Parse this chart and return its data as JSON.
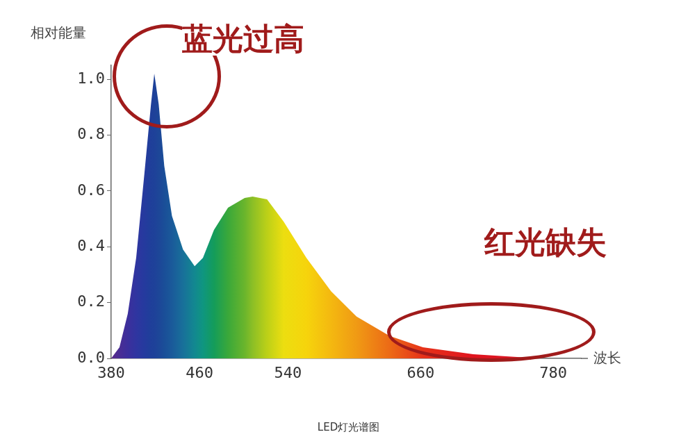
{
  "chart_data": {
    "type": "area",
    "xlabel": "波长",
    "ylabel": "相对能量",
    "x": [
      380,
      387.5,
      395,
      402.6,
      410,
      416,
      419,
      423,
      428,
      435,
      445,
      455.5,
      463,
      473,
      485.7,
      500.8,
      508,
      521,
      536,
      556.6,
      579,
      602,
      632,
      662,
      707.5,
      768
    ],
    "series": [
      {
        "values": [
          0,
          0.04,
          0.16,
          0.36,
          0.66,
          0.91,
          1.02,
          0.91,
          0.69,
          0.51,
          0.39,
          0.33,
          0.36,
          0.46,
          0.54,
          0.575,
          0.58,
          0.57,
          0.49,
          0.36,
          0.24,
          0.15,
          0.08,
          0.04,
          0.015,
          0
        ],
        "colors": [
          "#5a2a8a",
          "#4a2d94",
          "#3c2f9c",
          "#2f35a0",
          "#253a9e",
          "#1f3f9a",
          "#1e4199",
          "#1d4698",
          "#1a4e98",
          "#1a5a9a",
          "#18709a",
          "#128890",
          "#0f9680",
          "#149c5a",
          "#3aa83a",
          "#6ab52c",
          "#8cbf26",
          "#bcd018",
          "#ecde10",
          "#f6d40c",
          "#f4b810",
          "#f09a14",
          "#ec6a16",
          "#e6321a",
          "#e0141e",
          "#d81a28"
        ]
      }
    ],
    "xlim": [
      380,
      805
    ],
    "xticks": [
      380,
      460,
      540,
      660,
      780
    ],
    "ylim": [
      0,
      1.05
    ],
    "yticks": [
      {
        "value": 0,
        "label": "0.0"
      },
      {
        "value": 0.2,
        "label": "0.2"
      },
      {
        "value": 0.4,
        "label": "0.4"
      },
      {
        "value": 0.6,
        "label": "0.6"
      },
      {
        "value": 0.8,
        "label": "0.8"
      },
      {
        "value": 1,
        "label": "1.0"
      }
    ],
    "grid": false,
    "legend": false,
    "marker": "none",
    "annotations": [
      "蓝光过高",
      "红光缺失",
      "LED灯光谱图"
    ]
  }
}
